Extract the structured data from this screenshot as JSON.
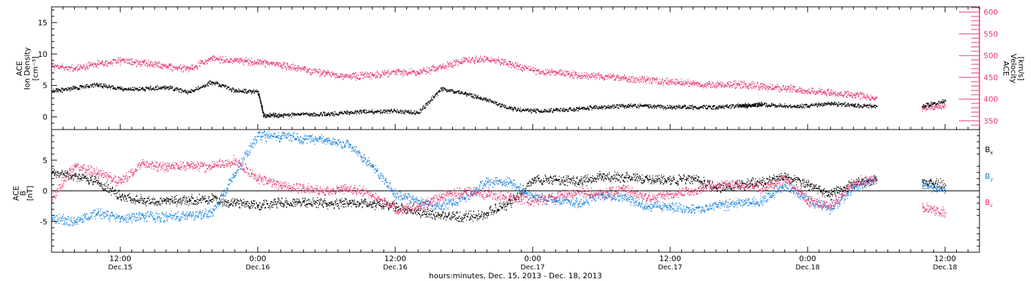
{
  "chart_data": [
    {
      "type": "scatter",
      "panel": "top",
      "title": "",
      "ylabel_lines": [
        "ACE",
        "Ion Density",
        "[cm⁻³]"
      ],
      "y2label_lines": [
        "ACE",
        "Velocity",
        "[km/s]"
      ],
      "ylim": [
        -2,
        17.5
      ],
      "y2lim": [
        330,
        612
      ],
      "yticks": [
        0,
        5,
        10,
        15
      ],
      "y2ticks": [
        350,
        400,
        450,
        500,
        550,
        600
      ],
      "colors": {
        "density": "#000000",
        "velocity": "#e8356b"
      },
      "series": [
        {
          "name": "Ion Density",
          "axis": "left",
          "x_hours": [
            0,
            2,
            4,
            6,
            8,
            10,
            12,
            14,
            16,
            18,
            18.5,
            20,
            22,
            24,
            26,
            28,
            30,
            32,
            34,
            36,
            38,
            40,
            42,
            44,
            46,
            48,
            50,
            52,
            54,
            56,
            58,
            60,
            61,
            62,
            64,
            66,
            68,
            70,
            72,
            74,
            76,
            78
          ],
          "values": [
            4.2,
            4.6,
            5.2,
            4.5,
            4.5,
            4.8,
            4.0,
            5.6,
            4.2,
            4.1,
            0.3,
            0.3,
            0.5,
            0.5,
            0.8,
            0.9,
            1.0,
            0.7,
            4.5,
            3.8,
            2.8,
            1.4,
            1.0,
            1.1,
            1.4,
            1.6,
            1.8,
            1.8,
            1.6,
            1.6,
            1.6,
            1.8,
            1.9,
            2.0,
            1.8,
            1.8,
            2.2,
            1.9,
            1.8,
            null,
            1.8,
            2.6
          ]
        },
        {
          "name": "Velocity",
          "axis": "right",
          "x_hours": [
            0,
            2,
            4,
            6,
            8,
            10,
            12,
            14,
            16,
            18,
            20,
            22,
            24,
            26,
            28,
            30,
            32,
            34,
            36,
            38,
            40,
            42,
            44,
            46,
            48,
            50,
            52,
            54,
            56,
            58,
            60,
            62,
            64,
            66,
            68,
            70,
            72,
            74,
            76,
            78
          ],
          "values": [
            478,
            470,
            482,
            488,
            484,
            476,
            470,
            493,
            490,
            485,
            480,
            468,
            458,
            452,
            456,
            462,
            462,
            475,
            488,
            495,
            482,
            466,
            462,
            455,
            452,
            448,
            445,
            440,
            438,
            432,
            435,
            430,
            425,
            420,
            415,
            410,
            405,
            null,
            380,
            385
          ]
        }
      ]
    },
    {
      "type": "scatter",
      "panel": "bottom",
      "title": "",
      "ylabel_lines": [
        "ACE",
        "B",
        "[nT]"
      ],
      "ylim": [
        -10,
        10
      ],
      "yticks": [
        -5,
        0,
        5
      ],
      "xlabel": "hours:minutes, Dec. 15, 2013 - Dec. 18, 2013",
      "legend_position": "right",
      "legend": [
        {
          "name": "B",
          "sub": "x",
          "color": "#000000"
        },
        {
          "name": "B",
          "sub": "y",
          "color": "#1580e0"
        },
        {
          "name": "B",
          "sub": "z",
          "color": "#e8356b"
        }
      ],
      "series": [
        {
          "name": "Bx",
          "color": "#000000",
          "x_hours": [
            0,
            2,
            4,
            6,
            8,
            10,
            12,
            14,
            16,
            18,
            20,
            22,
            24,
            26,
            28,
            30,
            32,
            34,
            36,
            38,
            40,
            42,
            44,
            46,
            48,
            50,
            52,
            54,
            56,
            58,
            60,
            62,
            64,
            66,
            68,
            70,
            72,
            74,
            76,
            78
          ],
          "values": [
            3.0,
            2.5,
            1.5,
            -0.8,
            -1.5,
            -1.6,
            -1.4,
            -1.3,
            -2.0,
            -2.2,
            -1.8,
            -1.8,
            -2.0,
            -2.0,
            -2.0,
            -2.5,
            -3.5,
            -4.0,
            -4.2,
            -3.5,
            -2.0,
            1.8,
            2.0,
            1.5,
            2.5,
            2.2,
            2.0,
            1.8,
            2.0,
            0.5,
            1.0,
            1.5,
            2.5,
            1.0,
            -0.5,
            1.2,
            1.8,
            null,
            1.5,
            1.0
          ]
        },
        {
          "name": "By",
          "color": "#1580e0",
          "x_hours": [
            0,
            2,
            4,
            6,
            8,
            10,
            12,
            14,
            16,
            18,
            20,
            22,
            24,
            26,
            28,
            30,
            32,
            34,
            36,
            38,
            40,
            42,
            44,
            46,
            48,
            50,
            52,
            54,
            56,
            58,
            60,
            62,
            64,
            66,
            68,
            70,
            72,
            74,
            76,
            78
          ],
          "values": [
            -4.5,
            -5.0,
            -3.5,
            -4.5,
            -4.0,
            -4.2,
            -4.0,
            -3.5,
            3.0,
            9.0,
            9.0,
            8.5,
            8.5,
            7.5,
            4.0,
            -0.5,
            -1.5,
            -2.5,
            -1.0,
            1.5,
            1.5,
            -1.0,
            -1.5,
            -2.0,
            -0.5,
            -1.0,
            -2.5,
            -2.5,
            -3.0,
            -2.5,
            -2.0,
            -1.5,
            1.0,
            -1.5,
            -3.0,
            0.5,
            2.0,
            null,
            1.0,
            0.0
          ]
        },
        {
          "name": "Bz",
          "color": "#e8356b",
          "x_hours": [
            0,
            2,
            4,
            6,
            8,
            10,
            12,
            14,
            16,
            18,
            20,
            22,
            24,
            26,
            28,
            30,
            32,
            34,
            36,
            38,
            40,
            42,
            44,
            46,
            48,
            50,
            52,
            54,
            56,
            58,
            60,
            62,
            64,
            66,
            68,
            70,
            72,
            74,
            76,
            78
          ],
          "values": [
            -1.0,
            4.0,
            3.0,
            1.5,
            4.5,
            4.0,
            4.2,
            4.0,
            5.0,
            2.0,
            1.0,
            0.5,
            0.0,
            0.5,
            -0.5,
            -3.0,
            -2.5,
            -1.0,
            0.0,
            -0.5,
            -1.0,
            -1.5,
            -1.0,
            0.0,
            -0.5,
            0.5,
            -1.0,
            -0.5,
            0.0,
            1.0,
            1.0,
            0.5,
            2.0,
            -1.5,
            -2.5,
            1.5,
            2.0,
            null,
            -2.5,
            -3.5
          ]
        }
      ]
    }
  ],
  "x_axis": {
    "range_hours": [
      0,
      81
    ],
    "major_ticks": [
      {
        "hour": 6,
        "time": "12:00",
        "date": "Dec.15"
      },
      {
        "hour": 18,
        "time": "0:00",
        "date": "Dec.16"
      },
      {
        "hour": 30,
        "time": "12:00",
        "date": "Dec.16"
      },
      {
        "hour": 42,
        "time": "0:00",
        "date": "Dec.17"
      },
      {
        "hour": 54,
        "time": "12:00",
        "date": "Dec.17"
      },
      {
        "hour": 66,
        "time": "0:00",
        "date": "Dec.18"
      },
      {
        "hour": 78,
        "time": "12:00",
        "date": "Dec.18"
      }
    ]
  }
}
